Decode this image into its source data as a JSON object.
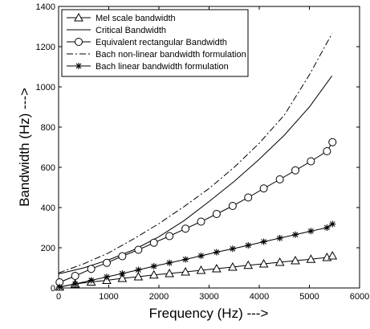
{
  "chart_data": {
    "type": "line",
    "title": "",
    "xlabel": "Frequency (Hz) --->",
    "ylabel": "Bandwidth (Hz) --->",
    "xlim": [
      0,
      6000
    ],
    "ylim": [
      0,
      1400
    ],
    "xticks": [
      0,
      1000,
      2000,
      3000,
      4000,
      5000,
      6000
    ],
    "yticks": [
      0,
      200,
      400,
      600,
      800,
      1000,
      1200,
      1400
    ],
    "xtick_labels": [
      "0",
      "1000",
      "2000",
      "3000",
      "4000",
      "5000",
      "6000"
    ],
    "ytick_labels": [
      "0",
      "200",
      "400",
      "600",
      "800",
      "1000",
      "1200",
      "1400"
    ],
    "grid": false,
    "legend_position": "top-left",
    "series": [
      {
        "name": "Mel scale bandwidth",
        "style": "solid-triangle",
        "color": "#000000",
        "x": [
          20,
          330,
          650,
          960,
          1270,
          1590,
          1900,
          2210,
          2530,
          2840,
          3150,
          3470,
          3780,
          4090,
          4410,
          4720,
          5030,
          5350,
          5460
        ],
        "y": [
          5,
          20,
          30,
          38,
          48,
          56,
          65,
          72,
          80,
          88,
          96,
          104,
          113,
          120,
          128,
          136,
          143,
          152,
          160
        ]
      },
      {
        "name": "Critical Bandwidth",
        "style": "solid",
        "color": "#000000",
        "x": [
          0,
          500,
          1000,
          1500,
          2000,
          2500,
          3000,
          3500,
          4000,
          4500,
          5000,
          5450
        ],
        "y": [
          70,
          100,
          140,
          190,
          255,
          335,
          430,
          530,
          640,
          760,
          900,
          1055
        ]
      },
      {
        "name": "Equivalent rectangular Bandwidth",
        "style": "solid-circle",
        "color": "#000000",
        "x": [
          20,
          330,
          650,
          960,
          1270,
          1590,
          1900,
          2210,
          2530,
          2840,
          3150,
          3470,
          3780,
          4090,
          4410,
          4720,
          5030,
          5350,
          5460
        ],
        "y": [
          28,
          60,
          95,
          125,
          158,
          190,
          225,
          258,
          295,
          330,
          368,
          408,
          450,
          495,
          540,
          585,
          630,
          680,
          725
        ]
      },
      {
        "name": "Bach non-linear bandwidth formulation",
        "style": "dash-dot",
        "color": "#000000",
        "x": [
          0,
          500,
          1000,
          1500,
          2000,
          2500,
          3000,
          3500,
          4000,
          4500,
          5000,
          5450
        ],
        "y": [
          75,
          120,
          175,
          245,
          320,
          405,
          495,
          600,
          720,
          860,
          1060,
          1265
        ]
      },
      {
        "name": "Bach linear bandwidth formulation",
        "style": "solid-star",
        "color": "#000000",
        "x": [
          20,
          330,
          650,
          960,
          1270,
          1590,
          1900,
          2210,
          2530,
          2840,
          3150,
          3470,
          3780,
          4090,
          4410,
          4720,
          5030,
          5350,
          5460
        ],
        "y": [
          5,
          20,
          38,
          55,
          72,
          90,
          108,
          125,
          142,
          160,
          178,
          195,
          212,
          230,
          248,
          265,
          283,
          300,
          318
        ]
      }
    ]
  }
}
